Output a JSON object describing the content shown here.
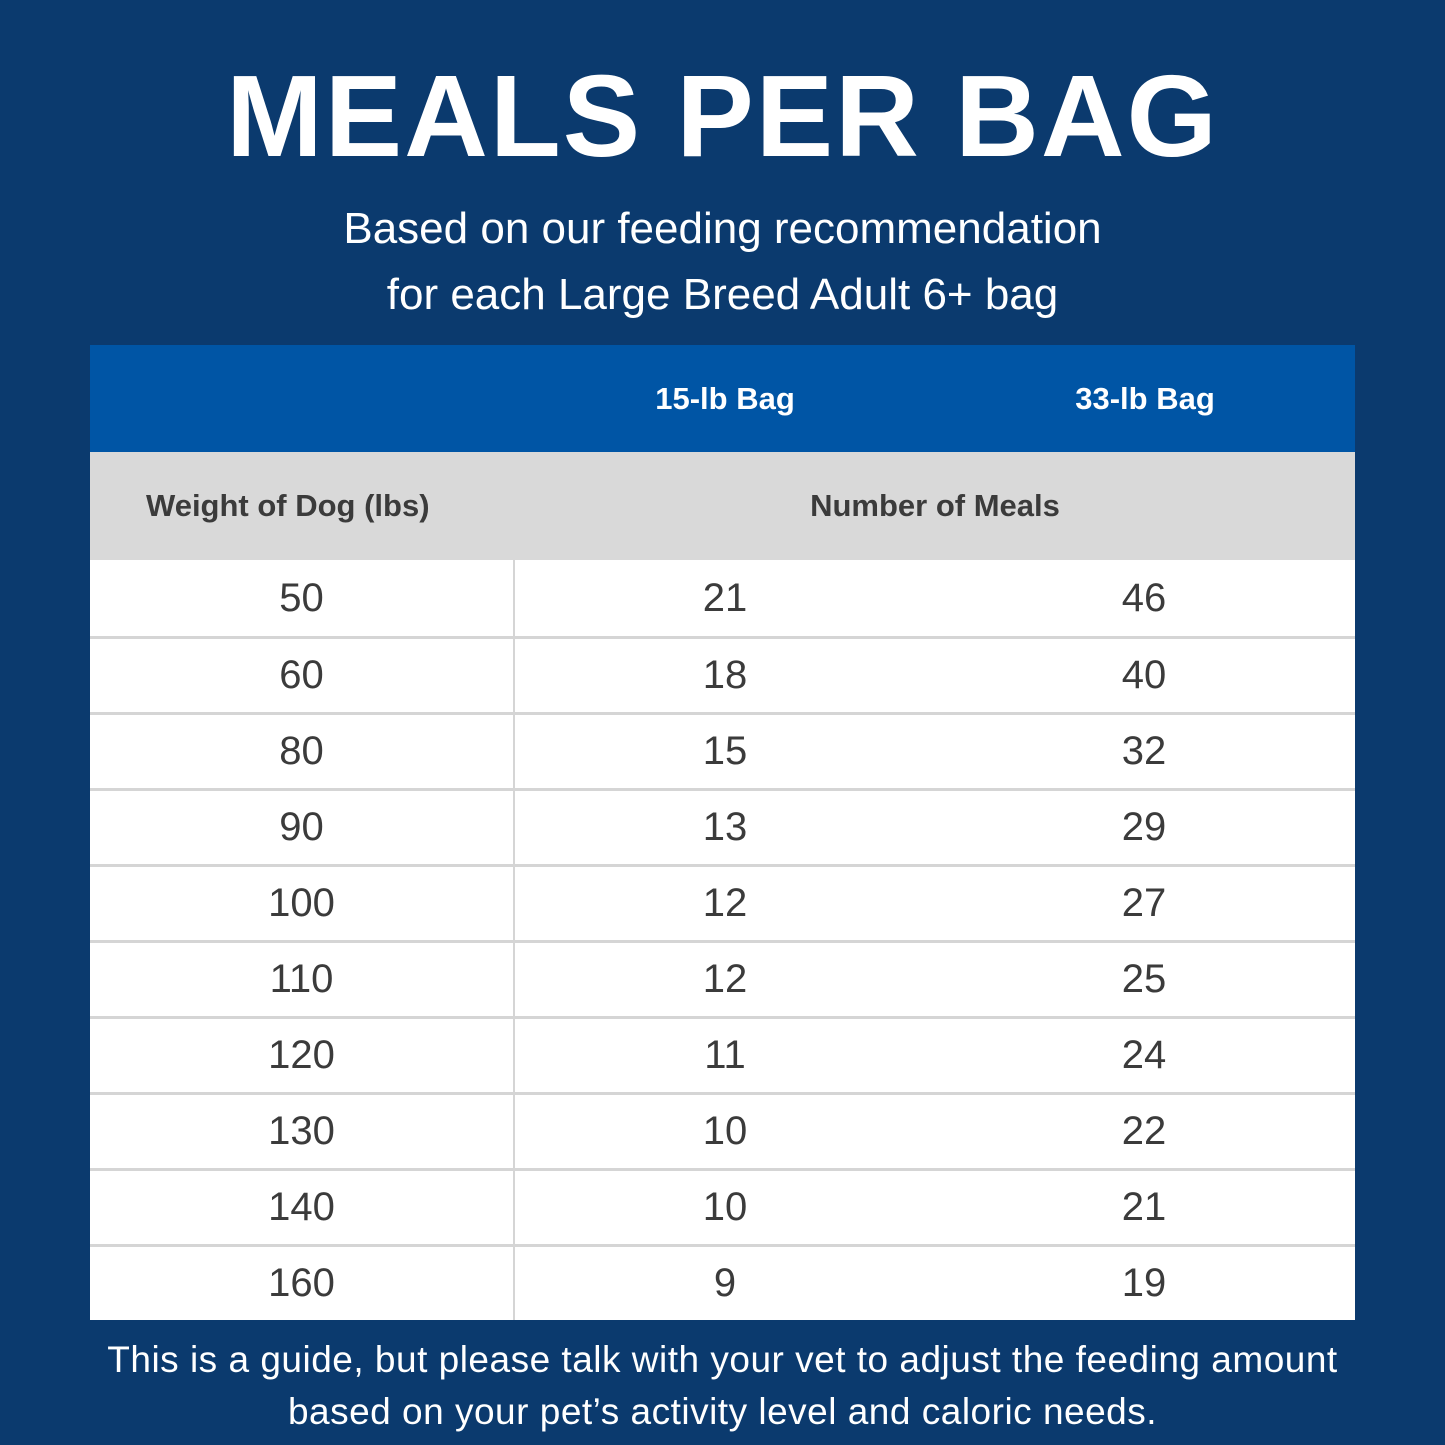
{
  "header": {
    "title": "MEALS PER BAG",
    "subtitle_line1": "Based on our feeding recommendation",
    "subtitle_line2": "for each Large Breed Adult 6+ bag"
  },
  "table": {
    "header": {
      "bag15": "15-lb Bag",
      "bag33": "33-lb Bag"
    },
    "subheader": {
      "weight": "Weight of Dog (lbs)",
      "meals": "Number of Meals"
    },
    "rows": [
      {
        "weight": "50",
        "bag15": "21",
        "bag33": "46"
      },
      {
        "weight": "60",
        "bag15": "18",
        "bag33": "40"
      },
      {
        "weight": "80",
        "bag15": "15",
        "bag33": "32"
      },
      {
        "weight": "90",
        "bag15": "13",
        "bag33": "29"
      },
      {
        "weight": "100",
        "bag15": "12",
        "bag33": "27"
      },
      {
        "weight": "110",
        "bag15": "12",
        "bag33": "25"
      },
      {
        "weight": "120",
        "bag15": "11",
        "bag33": "24"
      },
      {
        "weight": "130",
        "bag15": "10",
        "bag33": "22"
      },
      {
        "weight": "140",
        "bag15": "10",
        "bag33": "21"
      },
      {
        "weight": "160",
        "bag15": "9",
        "bag33": "19"
      }
    ]
  },
  "footer": {
    "line1": "This is a guide, but please talk with your vet to adjust the feeding amount",
    "line2": "based on your pet’s activity level and caloric needs."
  },
  "colors": {
    "background_navy": "#0B3A6E",
    "header_blue": "#0055A5",
    "subheader_gray": "#D9D9D9",
    "row_white": "#FFFFFF",
    "divider_gray": "#D5D5D5",
    "body_text": "#3B3B3B",
    "light_text": "#FFFFFF"
  },
  "chart_data": {
    "type": "table",
    "title": "MEALS PER BAG",
    "subtitle": "Based on our feeding recommendation for each Large Breed Adult 6+ bag",
    "columns": [
      "Weight of Dog (lbs)",
      "Number of Meals — 15-lb Bag",
      "Number of Meals — 33-lb Bag"
    ],
    "rows": [
      [
        50,
        21,
        46
      ],
      [
        60,
        18,
        40
      ],
      [
        80,
        15,
        32
      ],
      [
        90,
        13,
        29
      ],
      [
        100,
        12,
        27
      ],
      [
        110,
        12,
        25
      ],
      [
        120,
        11,
        24
      ],
      [
        130,
        10,
        22
      ],
      [
        140,
        10,
        21
      ],
      [
        160,
        9,
        19
      ]
    ],
    "note": "This is a guide, but please talk with your vet to adjust the feeding amount based on your pet’s activity level and caloric needs."
  }
}
